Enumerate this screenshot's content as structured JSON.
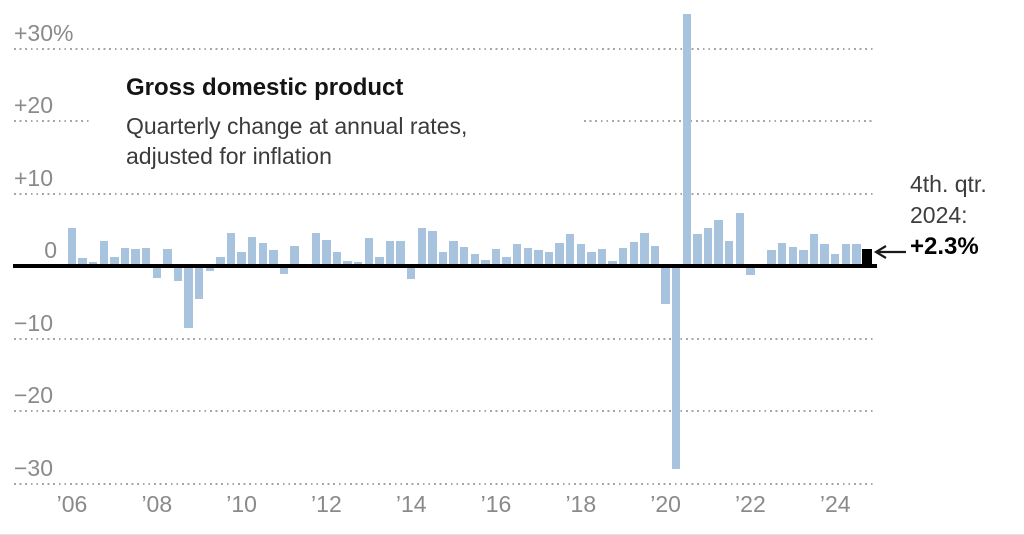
{
  "chart_data": {
    "type": "bar",
    "title": "Gross domestic product",
    "subtitle_lines": [
      "Quarterly change at annual rates,",
      "adjusted for inflation"
    ],
    "unit": "percent",
    "grid": "dotted horizontal",
    "legend": "none",
    "ylim": [
      -32,
      36
    ],
    "y_ticks": [
      {
        "label": "+30%",
        "value": 30
      },
      {
        "label": "+20",
        "value": 20
      },
      {
        "label": "+10",
        "value": 10
      },
      {
        "label": "0",
        "value": 0
      },
      {
        "label": "−10",
        "value": -10
      },
      {
        "label": "−20",
        "value": -20
      },
      {
        "label": "−30",
        "value": -30
      }
    ],
    "x_ticks": [
      {
        "label": "’06",
        "year": 2006
      },
      {
        "label": "’08",
        "year": 2008
      },
      {
        "label": "’10",
        "year": 2010
      },
      {
        "label": "’12",
        "year": 2012
      },
      {
        "label": "’14",
        "year": 2014
      },
      {
        "label": "’16",
        "year": 2016
      },
      {
        "label": "’18",
        "year": 2018
      },
      {
        "label": "’20",
        "year": 2020
      },
      {
        "label": "’22",
        "year": 2022
      },
      {
        "label": "’24",
        "year": 2024
      }
    ],
    "series": [
      {
        "year": 2006,
        "quarterly_pct_change": [
          5.3,
          1.1,
          0.6,
          3.5
        ]
      },
      {
        "year": 2007,
        "quarterly_pct_change": [
          1.2,
          2.5,
          2.4,
          2.5
        ]
      },
      {
        "year": 2008,
        "quarterly_pct_change": [
          -1.7,
          2.4,
          -2.1,
          -8.5
        ]
      },
      {
        "year": 2009,
        "quarterly_pct_change": [
          -4.5,
          -0.7,
          1.3,
          4.5
        ]
      },
      {
        "year": 2010,
        "quarterly_pct_change": [
          1.9,
          4.0,
          3.2,
          2.2
        ]
      },
      {
        "year": 2011,
        "quarterly_pct_change": [
          -1.1,
          2.8,
          -0.1,
          4.6
        ]
      },
      {
        "year": 2012,
        "quarterly_pct_change": [
          3.6,
          1.9,
          0.7,
          0.5
        ]
      },
      {
        "year": 2013,
        "quarterly_pct_change": [
          3.9,
          1.2,
          3.4,
          3.4
        ]
      },
      {
        "year": 2014,
        "quarterly_pct_change": [
          -1.8,
          5.2,
          4.8,
          2.0
        ]
      },
      {
        "year": 2015,
        "quarterly_pct_change": [
          3.5,
          2.6,
          1.7,
          0.8
        ]
      },
      {
        "year": 2016,
        "quarterly_pct_change": [
          2.3,
          1.2,
          3.0,
          2.5
        ]
      },
      {
        "year": 2017,
        "quarterly_pct_change": [
          2.2,
          1.9,
          3.2,
          4.4
        ]
      },
      {
        "year": 2018,
        "quarterly_pct_change": [
          3.1,
          1.9,
          2.4,
          0.7
        ]
      },
      {
        "year": 2019,
        "quarterly_pct_change": [
          2.5,
          3.3,
          4.6,
          2.8
        ]
      },
      {
        "year": 2020,
        "quarterly_pct_change": [
          -5.3,
          -28.0,
          34.8,
          4.4
        ]
      },
      {
        "year": 2021,
        "quarterly_pct_change": [
          5.2,
          6.3,
          3.4,
          7.3
        ]
      },
      {
        "year": 2022,
        "quarterly_pct_change": [
          -1.2,
          0.3,
          2.2,
          3.2
        ]
      },
      {
        "year": 2023,
        "quarterly_pct_change": [
          2.6,
          2.2,
          4.4,
          3.1
        ]
      },
      {
        "year": 2024,
        "quarterly_pct_change": [
          1.6,
          3.0,
          3.1,
          2.3
        ]
      }
    ],
    "highlight": {
      "quarter": "2024 Q4",
      "value": 2.3,
      "bar_color": "#000000"
    },
    "annotation": {
      "line1": "4th. qtr.",
      "line2": "2024:",
      "value": "+2.3%",
      "arrow": "left-arrow"
    },
    "colors": {
      "bar": "#a8c3de",
      "highlight_bar": "#000000",
      "zero_line": "#000000",
      "gridline": "#a6a6a6",
      "axis_label": "#8a8a8a",
      "title": "#141414",
      "subtitle": "#3b3b3b",
      "annotation_text": "#3d3d3d",
      "annotation_value": "#000000"
    }
  }
}
